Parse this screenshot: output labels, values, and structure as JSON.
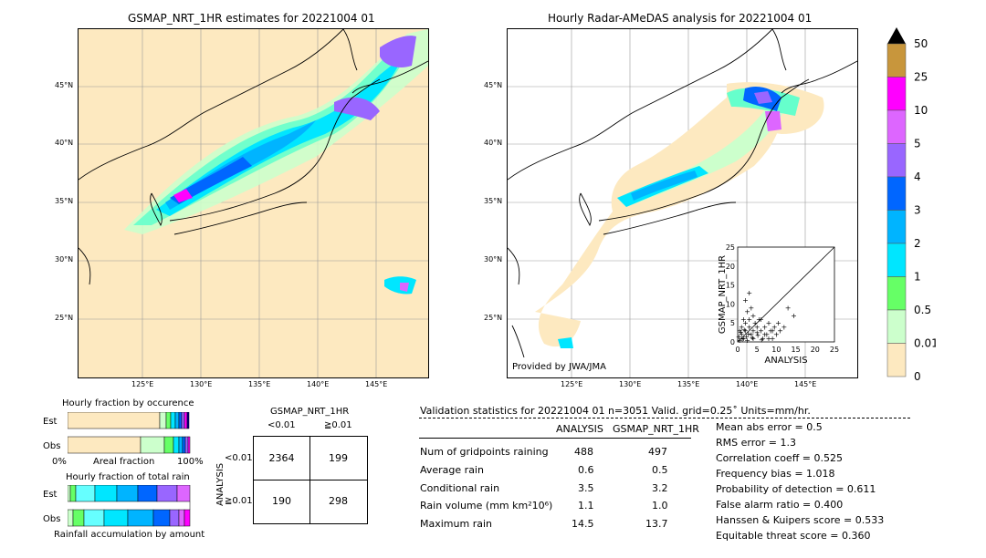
{
  "left_map": {
    "title": "GSMAP_NRT_1HR estimates for 20221004 01",
    "lat_labels": [
      "45°N",
      "40°N",
      "35°N",
      "30°N",
      "25°N"
    ],
    "lon_labels": [
      "125°E",
      "130°E",
      "135°E",
      "140°E",
      "145°E"
    ]
  },
  "right_map": {
    "title": "Hourly Radar-AMeDAS analysis for 20221004 01",
    "lat_labels": [
      "45°N",
      "40°N",
      "35°N",
      "30°N",
      "25°N"
    ],
    "lon_labels": [
      "125°E",
      "130°E",
      "135°E",
      "140°E",
      "145°E"
    ],
    "credit": "Provided by JWA/JMA"
  },
  "colorbar": {
    "labels": [
      "50",
      "25",
      "10",
      "5",
      "4",
      "3",
      "2",
      "1",
      "0.5",
      "0.01",
      "0"
    ],
    "colors": [
      "#c8963c",
      "#ff00ff",
      "#dd66ff",
      "#9966ff",
      "#0066ff",
      "#00b4ff",
      "#00e6ff",
      "#66ff66",
      "#ccffcc",
      "#fde9c0"
    ],
    "extend_color": "#000000"
  },
  "chart_data": [
    {
      "type": "scatter",
      "title": "",
      "xlabel": "ANALYSIS",
      "ylabel": "GSMAP_NRT_1HR",
      "xlim": [
        0,
        25
      ],
      "ylim": [
        0,
        25
      ],
      "x_ticks": [
        "0",
        "5",
        "10",
        "15",
        "20",
        "25"
      ],
      "y_ticks": [
        "0",
        "5",
        "10",
        "15",
        "20",
        "25"
      ],
      "points": [
        [
          0.5,
          0.5
        ],
        [
          1,
          2
        ],
        [
          1.5,
          1
        ],
        [
          2,
          3
        ],
        [
          2.5,
          0.5
        ],
        [
          3,
          4
        ],
        [
          3.5,
          2
        ],
        [
          4,
          1
        ],
        [
          4.5,
          5
        ],
        [
          5,
          2.5
        ],
        [
          5.5,
          6
        ],
        [
          6,
          3
        ],
        [
          6.5,
          1
        ],
        [
          7,
          4
        ],
        [
          7.5,
          2
        ],
        [
          8,
          5
        ],
        [
          8.5,
          3
        ],
        [
          9,
          1
        ],
        [
          9.5,
          4
        ],
        [
          10,
          2
        ],
        [
          10.5,
          5
        ],
        [
          11,
          3
        ],
        [
          12,
          4
        ],
        [
          13,
          9
        ],
        [
          14.5,
          7
        ],
        [
          2,
          11
        ],
        [
          3,
          13
        ],
        [
          2.5,
          8
        ],
        [
          1.5,
          6
        ],
        [
          3.5,
          9
        ],
        [
          4,
          7
        ],
        [
          1,
          4
        ],
        [
          0.5,
          3
        ],
        [
          2,
          5
        ],
        [
          3,
          6
        ],
        [
          4,
          3
        ],
        [
          5,
          4
        ],
        [
          6,
          6
        ],
        [
          7,
          2
        ],
        [
          8,
          1
        ],
        [
          9,
          3
        ],
        [
          0.3,
          1.5
        ],
        [
          1.2,
          0.8
        ],
        [
          2.8,
          2.2
        ],
        [
          3.8,
          1.2
        ],
        [
          5.2,
          1.8
        ],
        [
          6.2,
          0.6
        ],
        [
          1.7,
          3.3
        ],
        [
          0.8,
          2.6
        ],
        [
          2.2,
          1.4
        ]
      ]
    },
    {
      "type": "bar",
      "title": "Hourly fraction by occurence",
      "categories": [
        "Est",
        "Obs"
      ],
      "axis_labels": [
        "0%",
        "Areal fraction",
        "100%"
      ]
    },
    {
      "type": "bar",
      "title": "Hourly fraction of total rain",
      "categories": [
        "Est",
        "Obs"
      ],
      "xlabel": "Rainfall accumulation by amount"
    },
    {
      "type": "table",
      "title": "GSMAP_NRT_1HR",
      "col_headers": [
        "<0.01",
        "≧0.01"
      ],
      "row_label": "ANALYSIS",
      "row_headers": [
        "<0.01",
        "≧0.01"
      ],
      "cells": [
        [
          "2364",
          "199"
        ],
        [
          "190",
          "298"
        ]
      ]
    },
    {
      "type": "table",
      "title": "Validation statistics for 20221004 01  n=3051 Valid. grid=0.25˚ Units=mm/hr.",
      "col_headers": [
        "ANALYSIS",
        "GSMAP_NRT_1HR"
      ],
      "rows": [
        {
          "label": "Num of gridpoints raining",
          "analysis": "488",
          "gsmap": "497"
        },
        {
          "label": "Average rain",
          "analysis": "0.6",
          "gsmap": "0.5"
        },
        {
          "label": "Conditional rain",
          "analysis": "3.5",
          "gsmap": "3.2"
        },
        {
          "label": "Rain volume (mm km²10⁶)",
          "analysis": "1.1",
          "gsmap": "1.0"
        },
        {
          "label": "Maximum rain",
          "analysis": "14.5",
          "gsmap": "13.7"
        }
      ],
      "scores": [
        "Mean abs error =    0.5",
        "RMS error =    1.3",
        "Correlation coeff =  0.525",
        "Frequency bias =  1.018",
        "Probability of detection =  0.611",
        "False alarm ratio =  0.400",
        "Hanssen & Kuipers score =  0.533",
        "Equitable threat score =  0.360"
      ]
    }
  ]
}
